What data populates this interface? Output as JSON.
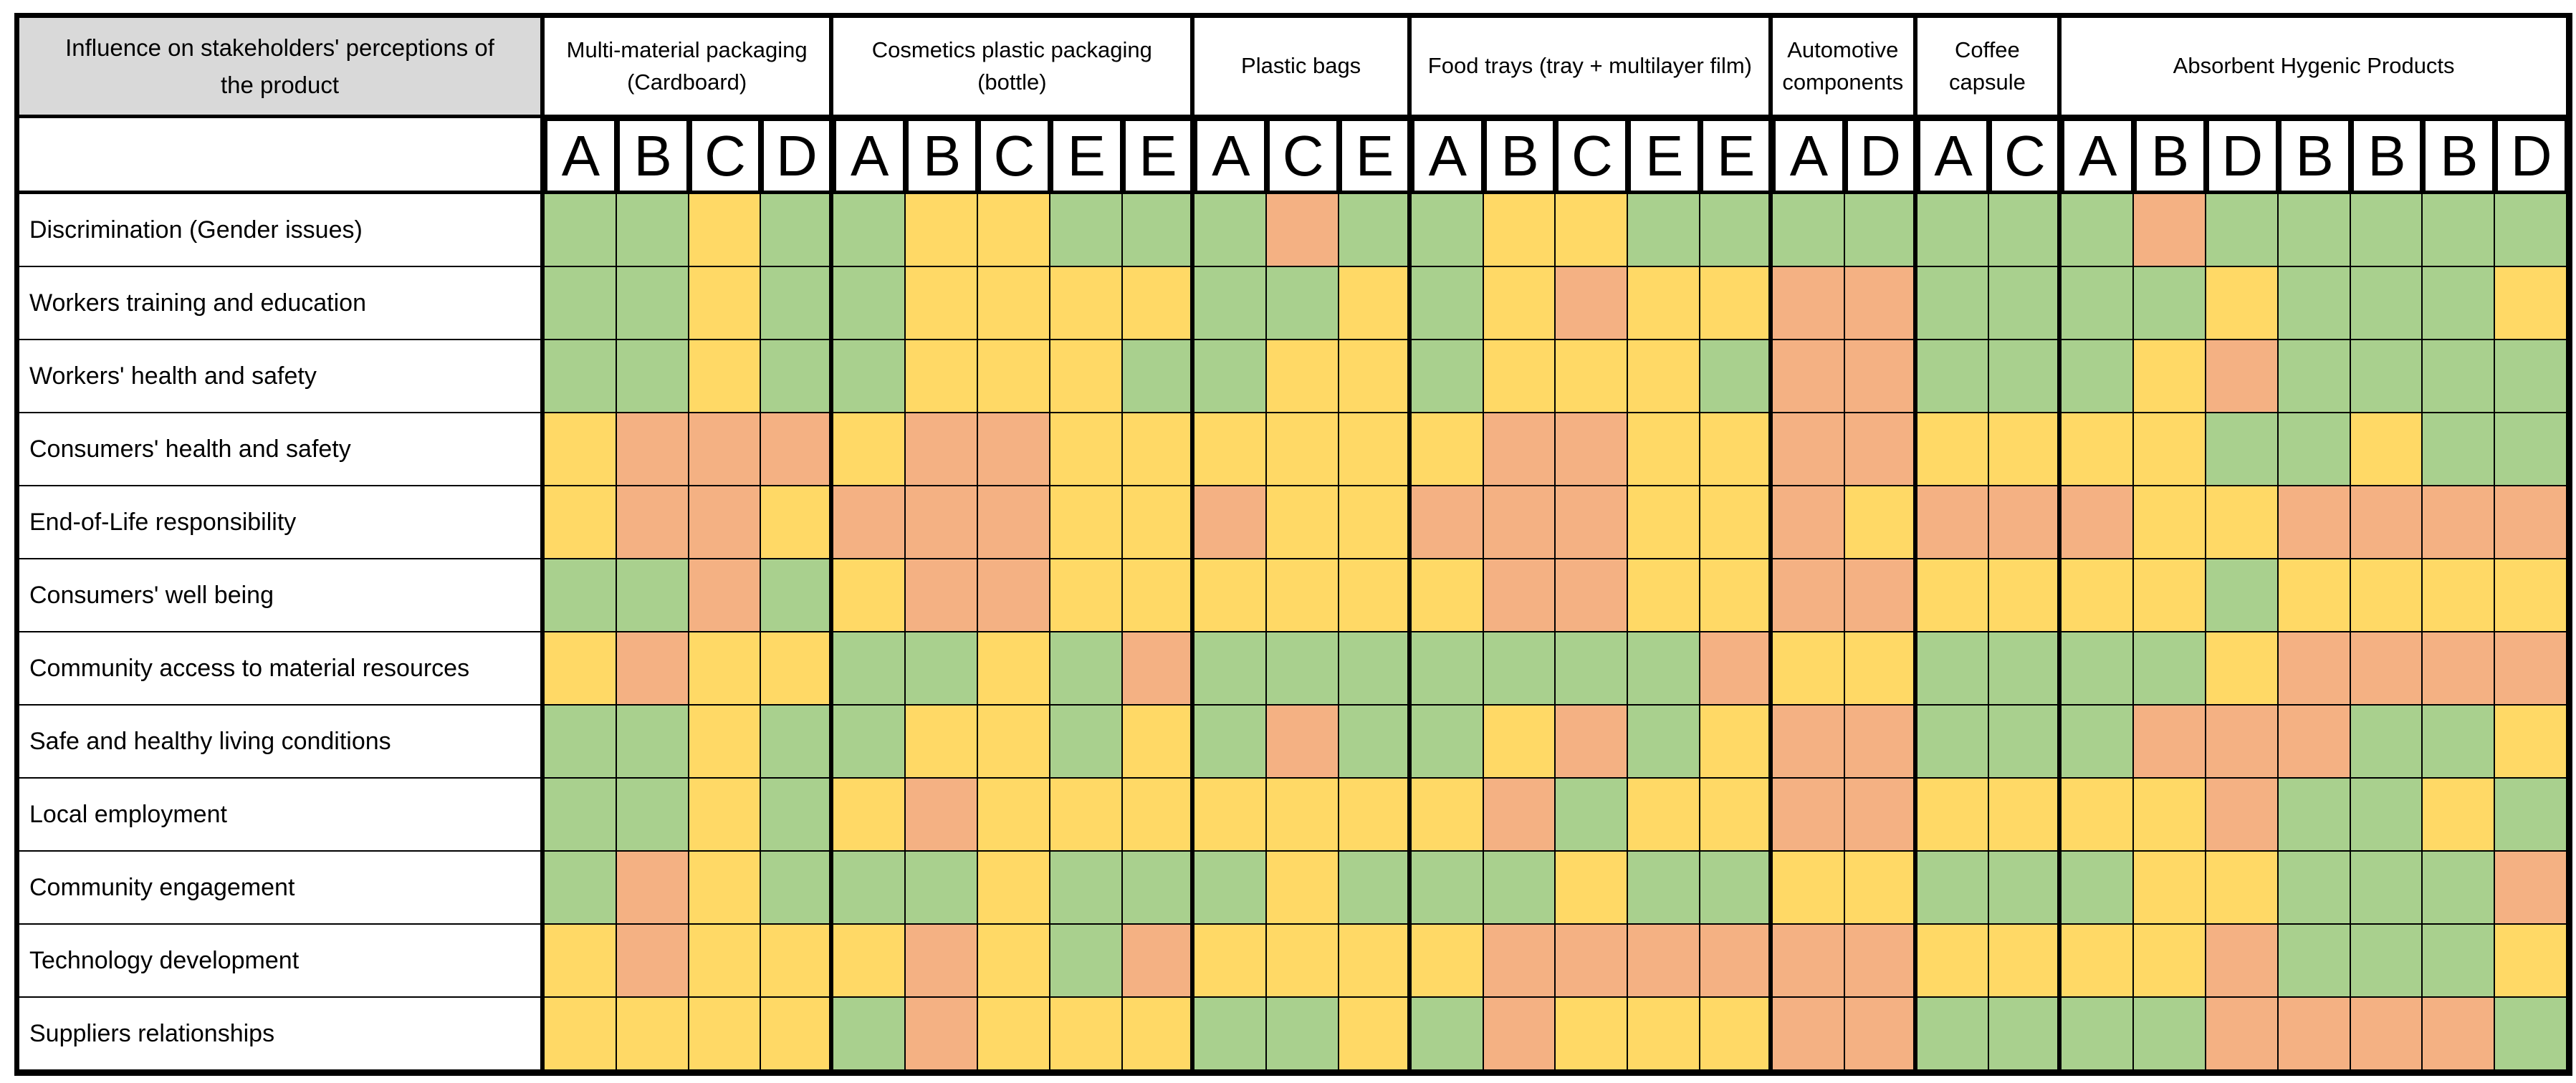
{
  "chart_data": {
    "type": "heatmap",
    "title": "Influence on stakeholders' perceptions of the product",
    "header_bg": "#D9D9D9",
    "cell_colors": {
      "G": "#A9D08E",
      "Y": "#FFD966",
      "O": "#F4B183"
    },
    "legend": [
      {
        "code": "G",
        "color": "#A9D08E"
      },
      {
        "code": "Y",
        "color": "#FFD966"
      },
      {
        "code": "O",
        "color": "#F4B183"
      }
    ],
    "groups": [
      {
        "label": "Multi-material packaging (Cardboard)",
        "letters": [
          "A",
          "B",
          "C",
          "D"
        ]
      },
      {
        "label": "Cosmetics plastic packaging (bottle)",
        "letters": [
          "A",
          "B",
          "C",
          "E",
          "E"
        ]
      },
      {
        "label": "Plastic bags",
        "letters": [
          "A",
          "C",
          "E"
        ]
      },
      {
        "label": "Food trays (tray + multilayer film)",
        "letters": [
          "A",
          "B",
          "C",
          "E",
          "E"
        ]
      },
      {
        "label": "Automotive components",
        "letters": [
          "A",
          "D"
        ]
      },
      {
        "label": "Coffee capsule",
        "letters": [
          "A",
          "C"
        ]
      },
      {
        "label": "Absorbent Hygenic Products",
        "letters": [
          "A",
          "B",
          "D",
          "B",
          "B",
          "B",
          "D"
        ]
      }
    ],
    "rows": [
      {
        "label": "Discrimination (Gender issues)",
        "cells": [
          "G",
          "G",
          "Y",
          "G",
          "G",
          "Y",
          "Y",
          "G",
          "G",
          "G",
          "O",
          "G",
          "G",
          "Y",
          "Y",
          "G",
          "G",
          "G",
          "G",
          "G",
          "G",
          "G",
          "O",
          "G",
          "G",
          "G",
          "G",
          "G"
        ]
      },
      {
        "label": "Workers training and education",
        "cells": [
          "G",
          "G",
          "Y",
          "G",
          "G",
          "Y",
          "Y",
          "Y",
          "Y",
          "G",
          "G",
          "Y",
          "G",
          "Y",
          "O",
          "Y",
          "Y",
          "O",
          "O",
          "G",
          "G",
          "G",
          "G",
          "Y",
          "G",
          "G",
          "G",
          "Y"
        ]
      },
      {
        "label": "Workers' health and safety",
        "cells": [
          "G",
          "G",
          "Y",
          "G",
          "G",
          "Y",
          "Y",
          "Y",
          "G",
          "G",
          "Y",
          "Y",
          "G",
          "Y",
          "Y",
          "Y",
          "G",
          "O",
          "O",
          "G",
          "G",
          "G",
          "Y",
          "O",
          "G",
          "G",
          "G",
          "G"
        ]
      },
      {
        "label": "Consumers' health and safety",
        "cells": [
          "Y",
          "O",
          "O",
          "O",
          "Y",
          "O",
          "O",
          "Y",
          "Y",
          "Y",
          "Y",
          "Y",
          "Y",
          "O",
          "O",
          "Y",
          "Y",
          "O",
          "O",
          "Y",
          "Y",
          "Y",
          "Y",
          "G",
          "G",
          "Y",
          "G",
          "G"
        ]
      },
      {
        "label": "End-of-Life responsibility",
        "cells": [
          "Y",
          "O",
          "O",
          "Y",
          "O",
          "O",
          "O",
          "Y",
          "Y",
          "O",
          "Y",
          "Y",
          "O",
          "O",
          "O",
          "Y",
          "Y",
          "O",
          "Y",
          "O",
          "O",
          "O",
          "Y",
          "Y",
          "O",
          "O",
          "O",
          "O"
        ]
      },
      {
        "label": "Consumers' well being",
        "cells": [
          "G",
          "G",
          "O",
          "G",
          "Y",
          "O",
          "O",
          "Y",
          "Y",
          "Y",
          "Y",
          "Y",
          "Y",
          "O",
          "O",
          "Y",
          "Y",
          "O",
          "O",
          "Y",
          "Y",
          "Y",
          "Y",
          "G",
          "Y",
          "Y",
          "Y",
          "Y"
        ]
      },
      {
        "label": "Community access to material resources",
        "cells": [
          "Y",
          "O",
          "Y",
          "Y",
          "G",
          "G",
          "Y",
          "G",
          "O",
          "G",
          "G",
          "G",
          "G",
          "G",
          "G",
          "G",
          "O",
          "Y",
          "Y",
          "G",
          "G",
          "G",
          "G",
          "Y",
          "O",
          "O",
          "O",
          "O"
        ]
      },
      {
        "label": "Safe and healthy living conditions",
        "cells": [
          "G",
          "G",
          "Y",
          "G",
          "G",
          "Y",
          "Y",
          "G",
          "Y",
          "G",
          "O",
          "G",
          "G",
          "Y",
          "O",
          "G",
          "Y",
          "O",
          "O",
          "G",
          "G",
          "G",
          "O",
          "O",
          "O",
          "G",
          "G",
          "Y"
        ]
      },
      {
        "label": "Local employment",
        "cells": [
          "G",
          "G",
          "Y",
          "G",
          "Y",
          "O",
          "Y",
          "Y",
          "Y",
          "Y",
          "Y",
          "Y",
          "Y",
          "O",
          "G",
          "Y",
          "Y",
          "O",
          "O",
          "Y",
          "Y",
          "Y",
          "Y",
          "O",
          "G",
          "G",
          "Y",
          "G"
        ]
      },
      {
        "label": "Community engagement",
        "cells": [
          "G",
          "O",
          "Y",
          "G",
          "G",
          "G",
          "Y",
          "G",
          "G",
          "G",
          "Y",
          "G",
          "G",
          "G",
          "Y",
          "G",
          "G",
          "Y",
          "Y",
          "G",
          "G",
          "G",
          "Y",
          "Y",
          "G",
          "G",
          "G",
          "O"
        ]
      },
      {
        "label": "Technology development",
        "cells": [
          "Y",
          "O",
          "Y",
          "Y",
          "Y",
          "O",
          "Y",
          "G",
          "O",
          "Y",
          "Y",
          "Y",
          "Y",
          "O",
          "O",
          "O",
          "O",
          "O",
          "O",
          "Y",
          "Y",
          "Y",
          "Y",
          "O",
          "G",
          "G",
          "G",
          "Y"
        ]
      },
      {
        "label": "Suppliers relationships",
        "cells": [
          "Y",
          "Y",
          "Y",
          "Y",
          "G",
          "O",
          "Y",
          "Y",
          "Y",
          "G",
          "G",
          "Y",
          "G",
          "O",
          "Y",
          "Y",
          "Y",
          "O",
          "O",
          "G",
          "G",
          "G",
          "G",
          "O",
          "O",
          "O",
          "O",
          "G"
        ]
      }
    ]
  }
}
